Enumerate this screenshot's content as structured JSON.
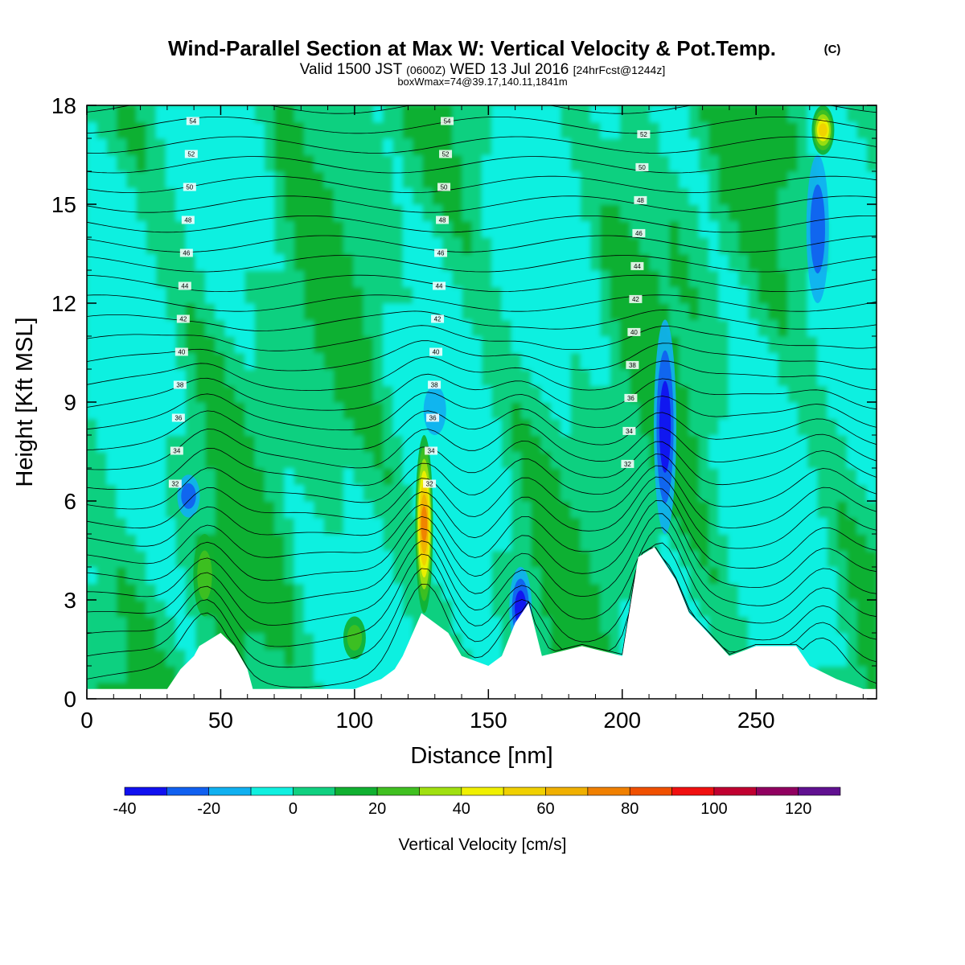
{
  "title": {
    "main": "Wind-Parallel Section at Max W: Vertical Velocity & Pot.Temp.",
    "copyright": "(C)",
    "valid_prefix": "Valid 1500 JST",
    "valid_utc": "(0600Z)",
    "valid_date": "WED 13 Jul 2016",
    "forecast": "[24hrFcst@1244z]",
    "box": "boxWmax=74@39.17,140.11,1841m"
  },
  "chart_data": {
    "type": "heatmap",
    "xlabel": "Distance [nm]",
    "ylabel": "Height [Kft MSL]",
    "xlim": [
      0,
      295
    ],
    "ylim": [
      0,
      18
    ],
    "xticks": [
      0,
      50,
      100,
      150,
      200,
      250
    ],
    "yticks": [
      0,
      3,
      6,
      9,
      12,
      15,
      18
    ],
    "xtick_labels": [
      "0",
      "50",
      "100",
      "150",
      "200",
      "250"
    ],
    "ytick_labels": [
      "0",
      "3",
      "6",
      "9",
      "12",
      "15",
      "18"
    ],
    "colorbar": {
      "title": "Vertical Velocity [cm/s]",
      "bounds": [
        -40,
        -30,
        -20,
        -10,
        0,
        10,
        20,
        30,
        40,
        50,
        60,
        70,
        80,
        90,
        100,
        110,
        120,
        130
      ],
      "colors": [
        "#1010f0",
        "#1060f0",
        "#10b0f0",
        "#10f0e0",
        "#10d080",
        "#10b030",
        "#40c020",
        "#a0e010",
        "#f0f000",
        "#f0d000",
        "#f0b000",
        "#f08000",
        "#f05000",
        "#f01010",
        "#c00030",
        "#900060",
        "#601090"
      ],
      "labels": [
        "-40",
        "-20",
        "0",
        "20",
        "40",
        "60",
        "80",
        "100",
        "120"
      ],
      "label_values": [
        -40,
        -20,
        0,
        20,
        40,
        60,
        80,
        100,
        120
      ]
    },
    "vertical_velocity_features": [
      {
        "x": 126,
        "z_bottom": 2.6,
        "z_top": 8.0,
        "w_max": 74
      },
      {
        "x": 275,
        "z_bottom": 16.5,
        "z_top": 18,
        "w_max": 50
      },
      {
        "x": 44,
        "z_bottom": 2.5,
        "z_top": 5,
        "w_max": 25
      },
      {
        "x": 100,
        "z_bottom": 1.2,
        "z_top": 2.5,
        "w_max": 22
      },
      {
        "x": 216,
        "z_bottom": 5,
        "z_top": 11.5,
        "w_max": -35
      },
      {
        "x": 273,
        "z_bottom": 12,
        "z_top": 16.5,
        "w_max": -28
      },
      {
        "x": 38,
        "z_bottom": 5.5,
        "z_top": 6.8,
        "w_max": -25
      },
      {
        "x": 162,
        "z_bottom": 1.5,
        "z_top": 4,
        "w_max": -30
      },
      {
        "x": 130,
        "z_bottom": 8.0,
        "z_top": 9.5,
        "w_max": -18
      }
    ],
    "terrain": {
      "x": [
        0,
        30,
        35,
        40,
        42,
        50,
        55,
        60,
        62,
        70,
        80,
        100,
        110,
        115,
        118,
        125,
        135,
        140,
        150,
        155,
        160,
        165,
        170,
        185,
        200,
        206,
        212,
        220,
        225,
        232,
        240,
        250,
        265,
        270,
        280,
        290,
        295
      ],
      "z": [
        0.3,
        0.3,
        0.9,
        1.3,
        1.6,
        2.0,
        1.6,
        0.9,
        0.3,
        0.3,
        0.3,
        0.3,
        0.6,
        0.9,
        1.3,
        2.6,
        2.0,
        1.3,
        1.0,
        1.3,
        2.3,
        2.9,
        1.3,
        1.6,
        1.3,
        4.3,
        4.6,
        3.6,
        2.6,
        2.0,
        1.3,
        1.6,
        1.6,
        1.0,
        0.6,
        0.3,
        0.3
      ]
    },
    "theta_levels": [
      32,
      34,
      36,
      38,
      40,
      42,
      44,
      46,
      48,
      50,
      52,
      54
    ],
    "theta_labels": [
      "32",
      "34",
      "36",
      "38",
      "40",
      "42",
      "44",
      "46",
      "48",
      "50",
      "52",
      "54"
    ]
  }
}
